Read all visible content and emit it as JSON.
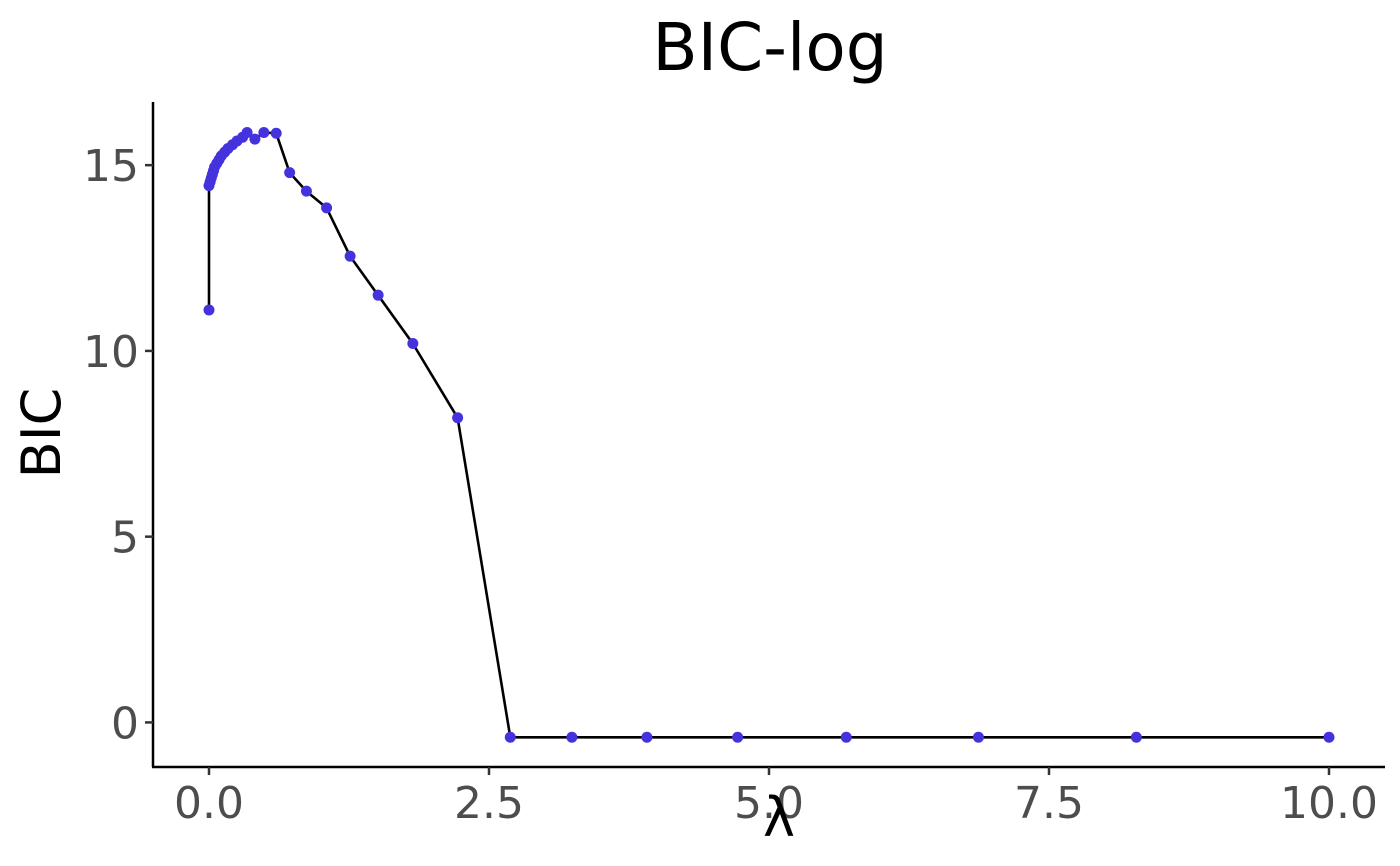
{
  "chart_data": {
    "type": "line",
    "title": "BIC-log",
    "xlabel": "λ",
    "ylabel": "BIC",
    "xlim": [
      -0.5,
      10.5
    ],
    "ylim": [
      -1.2,
      16.7
    ],
    "x_ticks": [
      0.0,
      2.5,
      5.0,
      7.5,
      10.0
    ],
    "x_tick_labels": [
      "0.0",
      "2.5",
      "5.0",
      "7.5",
      "10.0"
    ],
    "y_ticks": [
      0,
      5,
      10,
      15
    ],
    "y_tick_labels": [
      "0",
      "5",
      "10",
      "15"
    ],
    "grid": false,
    "legend": "none",
    "colors": {
      "points": "#4433dd",
      "line": "#000000",
      "axis": "#000000",
      "tick_labels": "#4d4d4d"
    },
    "series": [
      {
        "x": [
          0.0,
          0.0,
          0.01,
          0.02,
          0.03,
          0.04,
          0.05,
          0.07,
          0.09,
          0.11,
          0.14,
          0.17,
          0.21,
          0.25,
          0.3,
          0.34,
          0.41,
          0.49,
          0.6,
          0.72,
          0.87,
          1.05,
          1.26,
          1.51,
          1.82,
          2.22,
          2.69,
          3.24,
          3.91,
          4.72,
          5.69,
          6.87,
          8.28,
          10.0
        ],
        "y": [
          11.1,
          14.45,
          14.55,
          14.65,
          14.75,
          14.85,
          14.95,
          15.05,
          15.15,
          15.25,
          15.35,
          15.45,
          15.55,
          15.65,
          15.75,
          15.88,
          15.7,
          15.88,
          15.86,
          14.8,
          14.3,
          13.85,
          12.55,
          11.5,
          10.2,
          8.2,
          -0.4,
          -0.4,
          -0.4,
          -0.4,
          -0.4,
          -0.4,
          -0.4,
          -0.4
        ]
      }
    ]
  }
}
